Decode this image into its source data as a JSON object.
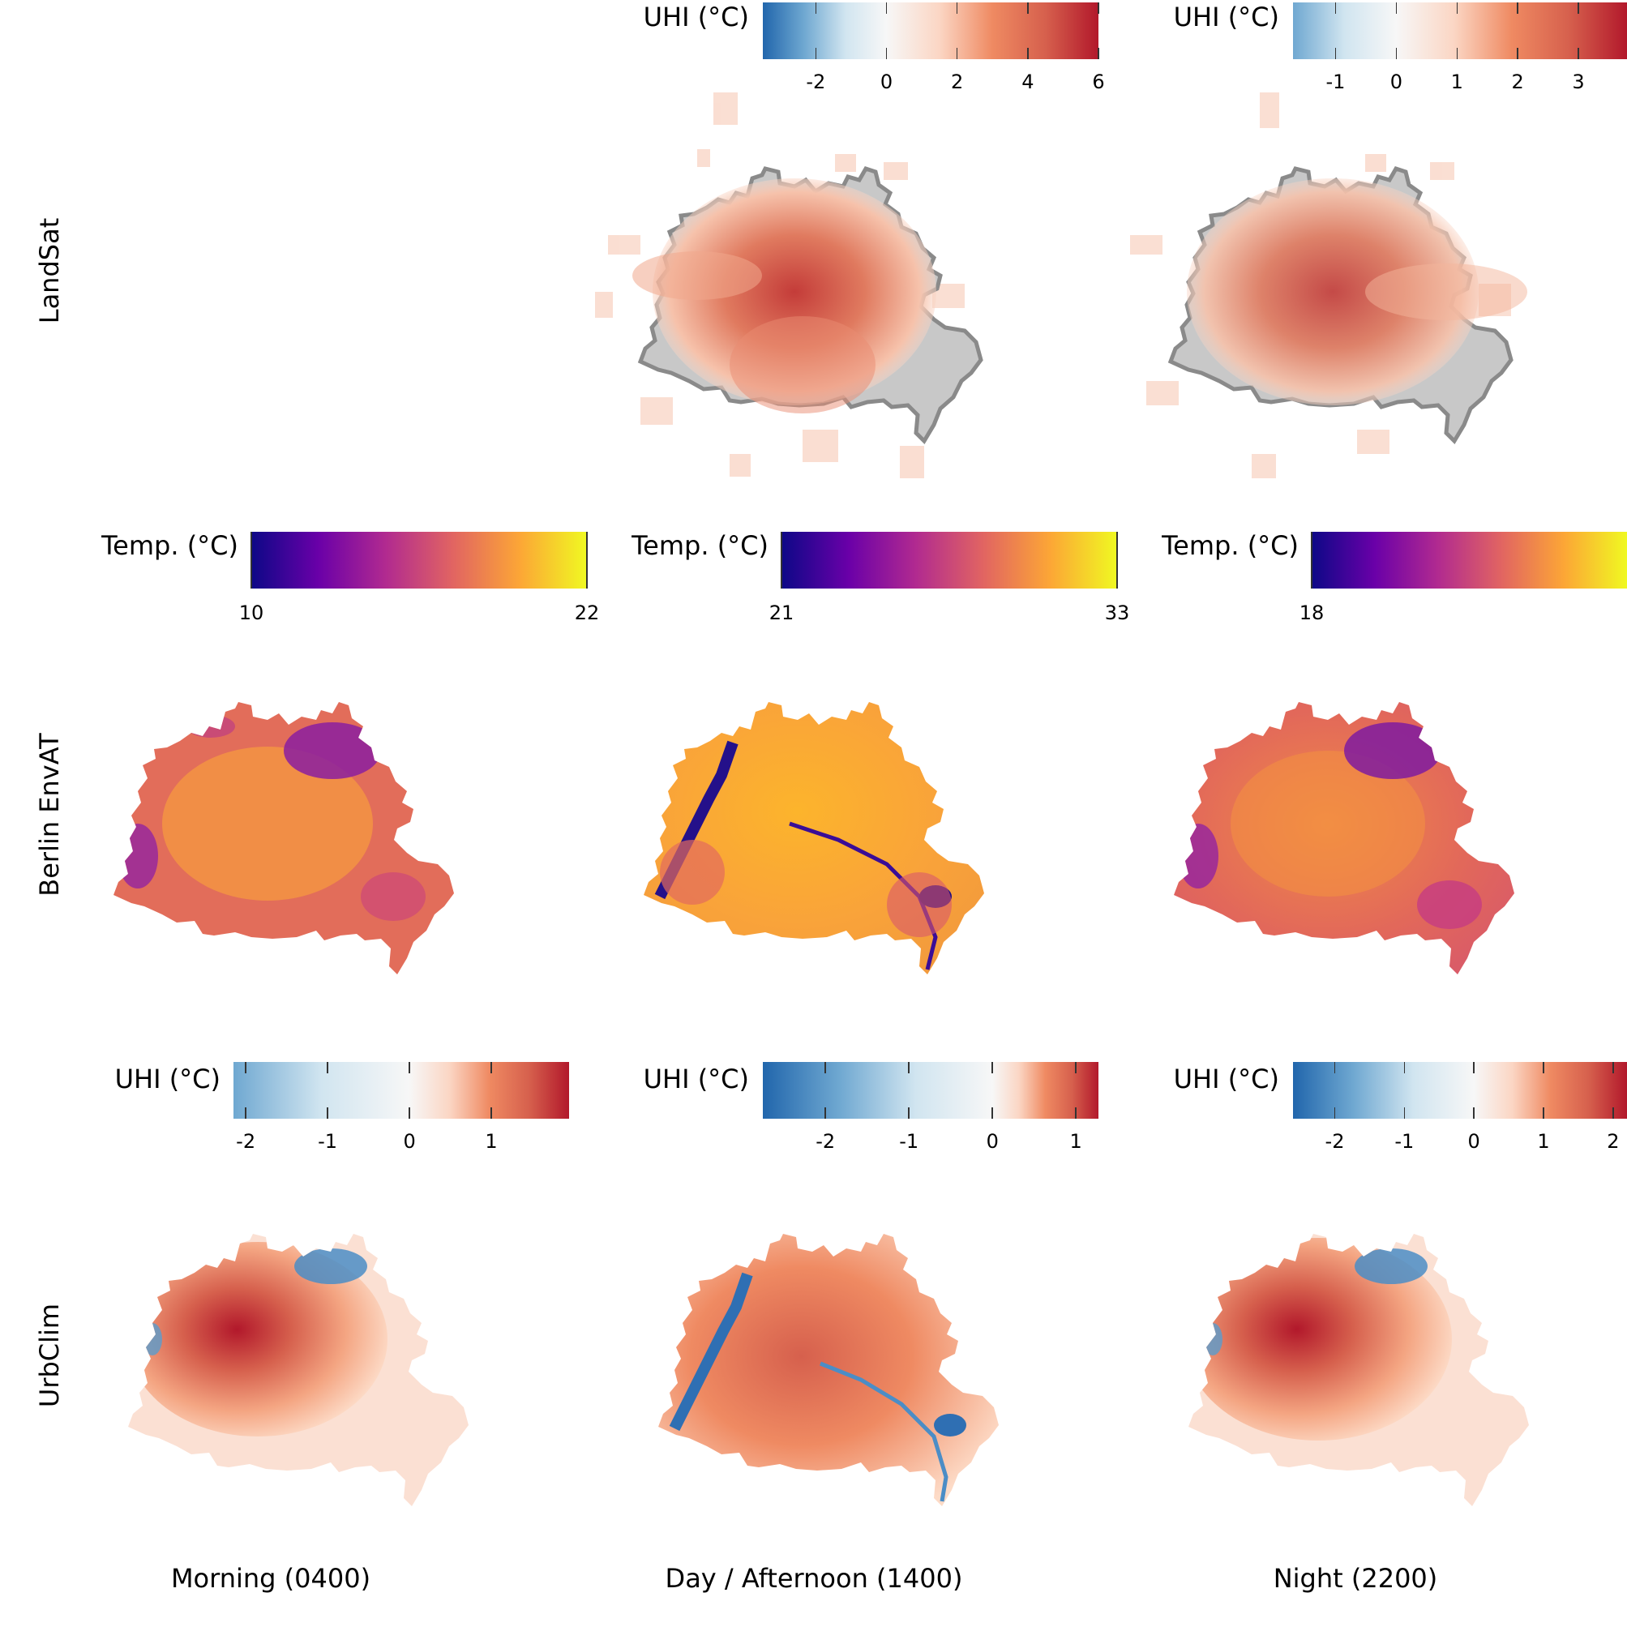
{
  "columns": [
    "Morning (0400)",
    "Day / Afternoon (1400)",
    "Night (2200)"
  ],
  "rows": [
    "LandSat",
    "Berlin EnvAT",
    "UrbClim"
  ],
  "colormaps": {
    "uhi_diverging": [
      "#2166ac",
      "#6fa8d1",
      "#d1e5f0",
      "#f7f7f7",
      "#fbd6c4",
      "#ef8a62",
      "#d6604d",
      "#b2182b"
    ],
    "plasma": [
      "#0d0887",
      "#6a00a8",
      "#b12a90",
      "#e16462",
      "#fca636",
      "#f0f921"
    ]
  },
  "landsat": {
    "morning": null,
    "day": {
      "title": "UHI (°C)",
      "ticks": [
        "-2",
        "0",
        "2",
        "4",
        "6"
      ],
      "tick_values": [
        -2,
        0,
        2,
        4,
        6
      ],
      "range": [
        -3.5,
        6
      ],
      "colormap": "uhi_diverging"
    },
    "night": {
      "title": "UHI (°C)",
      "ticks": [
        "-1",
        "0",
        "1",
        "2",
        "3"
      ],
      "tick_values": [
        -1,
        0,
        1,
        2,
        3
      ],
      "range": [
        -1.7,
        3.8
      ],
      "colormap": "uhi_diverging"
    }
  },
  "envat": {
    "morning": {
      "title": "Temp. (°C)",
      "ticks": [
        "10",
        "22"
      ],
      "tick_values": [
        10,
        22
      ],
      "range": [
        10,
        22
      ],
      "colormap": "plasma"
    },
    "day": {
      "title": "Temp. (°C)",
      "ticks": [
        "21",
        "33"
      ],
      "tick_values": [
        21,
        33
      ],
      "range": [
        21,
        33
      ],
      "colormap": "plasma"
    },
    "night": {
      "title": "Temp. (°C)",
      "ticks": [
        "18"
      ],
      "tick_values": [
        18
      ],
      "range": [
        18,
        30
      ],
      "colormap": "plasma"
    }
  },
  "urbclim": {
    "morning": {
      "title": "UHI (°C)",
      "ticks": [
        "-2",
        "-1",
        "0",
        "1"
      ],
      "tick_values": [
        -2,
        -1,
        0,
        1
      ],
      "range": [
        -2.15,
        1.95
      ],
      "colormap": "uhi_diverging"
    },
    "day": {
      "title": "UHI (°C)",
      "ticks": [
        "-2",
        "-1",
        "0",
        "1"
      ],
      "tick_values": [
        -2,
        -1,
        0,
        1
      ],
      "range": [
        -2.75,
        1.27
      ],
      "colormap": "uhi_diverging"
    },
    "night": {
      "title": "UHI (°C)",
      "ticks": [
        "-2",
        "-1",
        "0",
        "1",
        "2"
      ],
      "tick_values": [
        -2,
        -1,
        0,
        1,
        2
      ],
      "range": [
        -2.6,
        2.2
      ],
      "colormap": "uhi_diverging"
    }
  }
}
